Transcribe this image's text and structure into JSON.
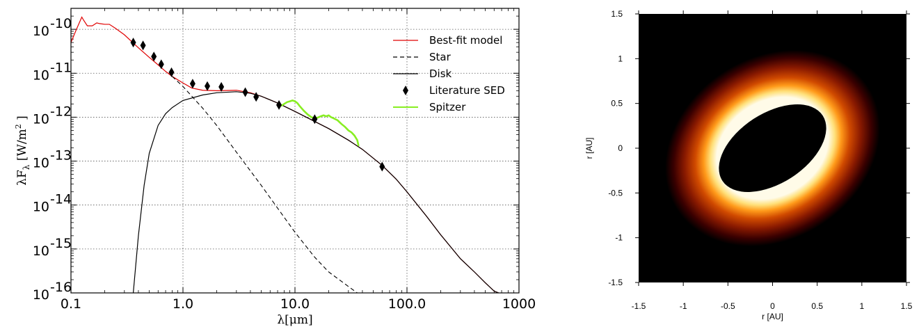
{
  "chart_data": [
    {
      "type": "line",
      "xlabel": "λ[μm]",
      "ylabel": "λF",
      "ylabel_sub": "λ",
      "ylabel_unit": "[W/m",
      "ylabel_unit_sup": "2",
      "ylabel_unit_end": "]",
      "x_scale": "log",
      "y_scale": "log",
      "xlim": [
        0.1,
        1000
      ],
      "ylim": [
        1e-16,
        3e-10
      ],
      "grid": true,
      "legend_position": "top-right",
      "x_ticks": [
        {
          "value": 0.1,
          "label": "0.1"
        },
        {
          "value": 1,
          "label": "1.0"
        },
        {
          "value": 10,
          "label": "10.0"
        },
        {
          "value": 100,
          "label": "100.0"
        },
        {
          "value": 1000,
          "label": "1000"
        }
      ],
      "y_ticks": [
        {
          "value": 1e-10,
          "base": "10",
          "exp": "-10"
        },
        {
          "value": 1e-11,
          "base": "10",
          "exp": "-11"
        },
        {
          "value": 1e-12,
          "base": "10",
          "exp": "-12"
        },
        {
          "value": 1e-13,
          "base": "10",
          "exp": "-13"
        },
        {
          "value": 1e-14,
          "base": "10",
          "exp": "-14"
        },
        {
          "value": 1e-15,
          "base": "10",
          "exp": "-15"
        },
        {
          "value": 1e-16,
          "base": "10",
          "exp": "-16"
        }
      ],
      "series": [
        {
          "name": "Best-fit model",
          "style": "solid",
          "color": "#e00000",
          "points": [
            [
              0.1,
              5e-11
            ],
            [
              0.11,
              9e-11
            ],
            [
              0.12,
              1.5e-10
            ],
            [
              0.125,
              1.9e-10
            ],
            [
              0.13,
              1.6e-10
            ],
            [
              0.14,
              1.2e-10
            ],
            [
              0.155,
              1.2e-10
            ],
            [
              0.17,
              1.4e-10
            ],
            [
              0.18,
              1.35e-10
            ],
            [
              0.2,
              1.3e-10
            ],
            [
              0.22,
              1.3e-10
            ],
            [
              0.25,
              1.05e-10
            ],
            [
              0.3,
              7.5e-11
            ],
            [
              0.35,
              5.2e-11
            ],
            [
              0.4,
              3.8e-11
            ],
            [
              0.5,
              2.3e-11
            ],
            [
              0.6,
              1.55e-11
            ],
            [
              0.7,
              1.1e-11
            ],
            [
              0.8,
              8.5e-12
            ],
            [
              1.0,
              6e-12
            ],
            [
              1.2,
              4.6e-12
            ],
            [
              1.5,
              4.1e-12
            ],
            [
              2.0,
              4e-12
            ],
            [
              3.0,
              4.1e-12
            ],
            [
              4.0,
              3.6e-12
            ],
            [
              5.0,
              3e-12
            ],
            [
              7.0,
              2.1e-12
            ],
            [
              10,
              1.35e-12
            ],
            [
              15,
              8e-13
            ],
            [
              20,
              5.5e-13
            ],
            [
              30,
              3e-13
            ],
            [
              40,
              1.85e-13
            ],
            [
              60,
              8e-14
            ],
            [
              80,
              3.9e-14
            ],
            [
              100,
              2e-14
            ],
            [
              150,
              5.5e-15
            ],
            [
              200,
              2.1e-15
            ],
            [
              300,
              6e-16
            ],
            [
              400,
              3e-16
            ],
            [
              500,
              1.7e-16
            ],
            [
              600,
              1.1e-16
            ],
            [
              660,
              1e-16
            ]
          ]
        },
        {
          "name": "Star",
          "style": "dashed",
          "color": "#000000",
          "points": [
            [
              0.8,
              8.5e-12
            ],
            [
              1.0,
              5e-12
            ],
            [
              1.5,
              1.6e-12
            ],
            [
              2.0,
              6.5e-13
            ],
            [
              3.0,
              1.6e-13
            ],
            [
              5.0,
              2.8e-14
            ],
            [
              7.0,
              8.5e-15
            ],
            [
              10,
              2.4e-15
            ],
            [
              15,
              6.5e-16
            ],
            [
              20,
              3e-16
            ],
            [
              30,
              1.4e-16
            ],
            [
              36,
              1e-16
            ]
          ]
        },
        {
          "name": "Disk",
          "style": "solid",
          "color": "#000000",
          "points": [
            [
              0.36,
              1e-16
            ],
            [
              0.4,
              2e-15
            ],
            [
              0.45,
              2.8e-14
            ],
            [
              0.5,
              1.5e-13
            ],
            [
              0.6,
              6.5e-13
            ],
            [
              0.7,
              1.2e-12
            ],
            [
              0.8,
              1.65e-12
            ],
            [
              1.0,
              2.4e-12
            ],
            [
              1.5,
              3.2e-12
            ],
            [
              2.0,
              3.6e-12
            ],
            [
              3.0,
              3.8e-12
            ],
            [
              4.0,
              3.5e-12
            ],
            [
              5.0,
              3e-12
            ],
            [
              7.0,
              2.1e-12
            ],
            [
              10,
              1.35e-12
            ],
            [
              15,
              8e-13
            ],
            [
              20,
              5.5e-13
            ],
            [
              30,
              3e-13
            ],
            [
              40,
              1.85e-13
            ],
            [
              60,
              8e-14
            ],
            [
              80,
              3.9e-14
            ],
            [
              100,
              2e-14
            ],
            [
              150,
              5.5e-15
            ],
            [
              200,
              2.1e-15
            ],
            [
              300,
              6e-16
            ],
            [
              400,
              3e-16
            ],
            [
              500,
              1.7e-16
            ],
            [
              600,
              1.1e-16
            ],
            [
              660,
              1e-16
            ]
          ]
        },
        {
          "name": "Literature SED",
          "style": "markers",
          "color": "#000000",
          "points": [
            [
              0.36,
              5e-11
            ],
            [
              0.44,
              4.3e-11
            ],
            [
              0.55,
              2.4e-11
            ],
            [
              0.64,
              1.6e-11
            ],
            [
              0.79,
              1.05e-11
            ],
            [
              1.22,
              5.8e-12
            ],
            [
              1.65,
              5.1e-12
            ],
            [
              2.2,
              4.9e-12
            ],
            [
              3.6,
              3.7e-12
            ],
            [
              4.5,
              2.9e-12
            ],
            [
              7.2,
              1.9e-12
            ],
            [
              15,
              9e-13
            ],
            [
              60,
              7.5e-14
            ]
          ]
        },
        {
          "name": "Spitzer",
          "style": "solid",
          "color": "#88ee22",
          "points": [
            [
              7.5,
              1.8e-12
            ],
            [
              8.0,
              2e-12
            ],
            [
              8.5,
              2.2e-12
            ],
            [
              9.0,
              2.3e-12
            ],
            [
              9.5,
              2.4e-12
            ],
            [
              10.0,
              2.3e-12
            ],
            [
              10.5,
              2.1e-12
            ],
            [
              11,
              1.8e-12
            ],
            [
              12,
              1.4e-12
            ],
            [
              13,
              1.15e-12
            ],
            [
              14,
              1e-12
            ],
            [
              15,
              9.5e-13
            ],
            [
              16,
              9.8e-13
            ],
            [
              17,
              1.05e-12
            ],
            [
              18,
              1.1e-12
            ],
            [
              19,
              1.05e-12
            ],
            [
              20,
              1.1e-12
            ],
            [
              21,
              1e-12
            ],
            [
              22,
              9.5e-13
            ],
            [
              24,
              8.5e-13
            ],
            [
              26,
              7e-13
            ],
            [
              28,
              6e-13
            ],
            [
              30,
              5e-13
            ],
            [
              32,
              4.5e-13
            ],
            [
              34,
              3.8e-13
            ],
            [
              36,
              3e-13
            ],
            [
              37,
              2.2e-13
            ]
          ]
        }
      ]
    },
    {
      "type": "heatmap",
      "xlabel": "r [AU]",
      "ylabel": "r [AU]",
      "xlim": [
        -1.5,
        1.5
      ],
      "ylim": [
        -1.5,
        1.5
      ],
      "x_ticks": [
        "-1.5",
        "-1",
        "-0.5",
        "0",
        "0.5",
        "1",
        "1.5"
      ],
      "y_ticks": [
        "1.5",
        "1",
        "0.5",
        "0",
        "-0.5",
        "-1",
        "-1.5"
      ],
      "colormap": [
        "#000000",
        "#3a0000",
        "#8a1a00",
        "#d04a00",
        "#ff9a1a",
        "#ffe07a",
        "#fffbe8"
      ],
      "disk_model": {
        "inner_hole_semi_major_au": 0.67,
        "inner_hole_semi_minor_au": 0.39,
        "position_angle_deg": 33,
        "center_au": [
          0.0,
          0.0
        ]
      }
    }
  ]
}
